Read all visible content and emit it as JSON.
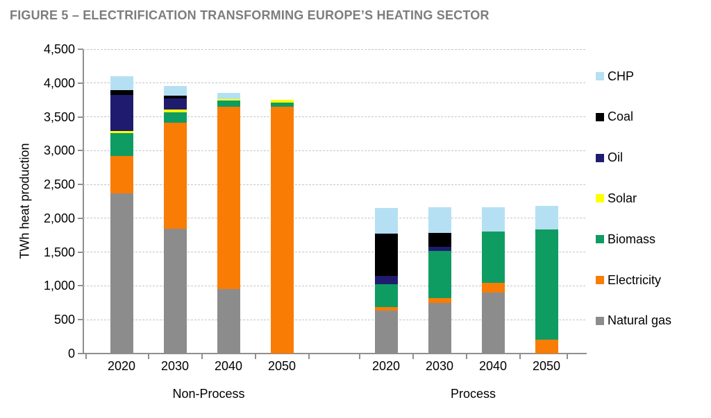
{
  "figure": {
    "title": "FIGURE 5 – ELECTRIFICATION TRANSFORMING EUROPE’S HEATING SECTOR"
  },
  "chart_data": {
    "type": "bar",
    "stacked": true,
    "title": "FIGURE 5 – ELECTRIFICATION TRANSFORMING EUROPE’S HEATING SECTOR",
    "ylabel": "TWh heat production",
    "unit": "TWh",
    "ylim": [
      0,
      4500
    ],
    "ytick_interval": 500,
    "ytick_labels": [
      "0",
      "500",
      "1,000",
      "1,500",
      "2,000",
      "2,500",
      "3,000",
      "3,500",
      "4,000",
      "4,500"
    ],
    "grid": "horizontal-dashed",
    "gridline_color": "#C4C4C4",
    "axis_color": "#8F8F8F",
    "legend_position": "right",
    "legend_order_top_to_bottom": [
      "CHP",
      "Coal",
      "Oil",
      "Solar",
      "Biomass",
      "Electricity",
      "Natural gas"
    ],
    "groups": [
      {
        "label": "Non-Process",
        "categories": [
          "2020",
          "2030",
          "2040",
          "2050"
        ]
      },
      {
        "label": "Process",
        "categories": [
          "2020",
          "2030",
          "2040",
          "2050"
        ]
      }
    ],
    "series_bottom_to_top": [
      {
        "name": "Natural gas",
        "color": "#8C8C8C",
        "values": {
          "Non-Process": [
            2370,
            1850,
            955,
            0
          ],
          "Process": [
            640,
            745,
            900,
            0
          ]
        }
      },
      {
        "name": "Electricity",
        "color": "#F97C05",
        "values": {
          "Non-Process": [
            550,
            1560,
            2695,
            3650
          ],
          "Process": [
            50,
            75,
            145,
            210
          ]
        }
      },
      {
        "name": "Biomass",
        "color": "#0E9C63",
        "values": {
          "Non-Process": [
            340,
            160,
            90,
            60
          ],
          "Process": [
            335,
            700,
            755,
            1625
          ]
        }
      },
      {
        "name": "Solar",
        "color": "#FFFF00",
        "values": {
          "Non-Process": [
            30,
            40,
            25,
            40
          ],
          "Process": [
            0,
            0,
            0,
            0
          ]
        }
      },
      {
        "name": "Oil",
        "color": "#1F1C70",
        "values": {
          "Non-Process": [
            530,
            160,
            0,
            0
          ],
          "Process": [
            125,
            60,
            0,
            0
          ]
        }
      },
      {
        "name": "Coal",
        "color": "#000000",
        "values": {
          "Non-Process": [
            80,
            40,
            0,
            0
          ],
          "Process": [
            620,
            200,
            0,
            0
          ]
        }
      },
      {
        "name": "CHP",
        "color": "#B5E0F4",
        "values": {
          "Non-Process": [
            200,
            150,
            90,
            0
          ],
          "Process": [
            380,
            380,
            360,
            345
          ]
        }
      }
    ]
  }
}
